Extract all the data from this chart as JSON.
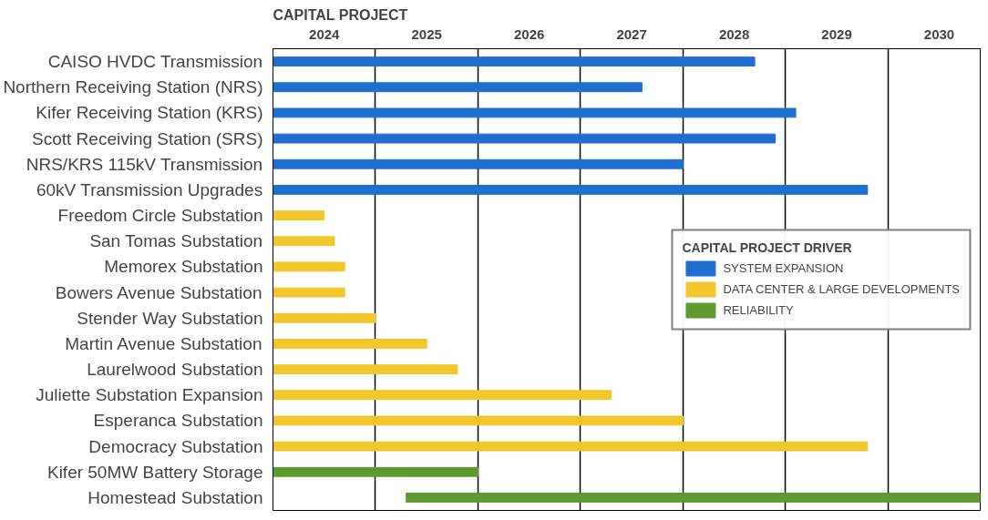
{
  "chart_data": {
    "type": "bar",
    "orientation": "horizontal",
    "ylabel": "CAPITAL PROJECT",
    "legend_title": "CAPITAL PROJECT DRIVER",
    "legend": "right",
    "grid": "x",
    "categories": [
      "CAISO HVDC Transmission",
      "Northern Receiving Station (NRS)",
      "Kifer Receiving Station (KRS)",
      "Scott Receiving Station (SRS)",
      "NRS/KRS 115kV Transmission",
      "60kV Transmission Upgrades",
      "Freedom Circle Substation",
      "San Tomas Substation",
      "Memorex Substation",
      "Bowers Avenue Substation",
      "Stender Way Substation",
      "Martin Avenue Substation",
      "Laurelwood Substation",
      "Juliette Substation Expansion",
      "Esperanca Substation",
      "Democracy Substation",
      "Kifer 50MW Battery Storage",
      "Homestead Substation"
    ],
    "series": [
      {
        "name": "SYSTEM EXPANSION",
        "color": "#1f6fd1",
        "base": [
          2023.5,
          2023.5,
          2023.5,
          2023.5,
          2023.5,
          2023.5,
          null,
          null,
          null,
          null,
          null,
          null,
          null,
          null,
          null,
          null,
          null,
          null
        ],
        "values": [
          4.7,
          3.6,
          5.1,
          4.9,
          4.0,
          5.8,
          null,
          null,
          null,
          null,
          null,
          null,
          null,
          null,
          null,
          null,
          null,
          null
        ]
      },
      {
        "name": "DATA CENTER & LARGE DEVELOPMENTS",
        "color": "#f2c72c",
        "base": [
          null,
          null,
          null,
          null,
          null,
          null,
          2023.5,
          2023.5,
          2023.5,
          2023.5,
          2023.5,
          2023.5,
          2023.5,
          2023.5,
          2023.5,
          2023.5,
          null,
          null
        ],
        "values": [
          null,
          null,
          null,
          null,
          null,
          null,
          0.5,
          0.6,
          0.7,
          0.7,
          1.0,
          1.5,
          1.8,
          3.3,
          4.0,
          5.8,
          null,
          null
        ]
      },
      {
        "name": "RELIABILITY",
        "color": "#5f9a2e",
        "base": [
          null,
          null,
          null,
          null,
          null,
          null,
          null,
          null,
          null,
          null,
          null,
          null,
          null,
          null,
          null,
          null,
          2023.5,
          2024.8
        ],
        "values": [
          null,
          null,
          null,
          null,
          null,
          null,
          null,
          null,
          null,
          null,
          null,
          null,
          null,
          null,
          null,
          null,
          2.0,
          5.6
        ]
      }
    ],
    "xlim": [
      2023.5,
      2030.4
    ],
    "xticks": [
      {
        "value": 2023.5,
        "label": null
      },
      2024,
      {
        "value": 2024.5,
        "label": null
      },
      2025,
      {
        "value": 2025.5,
        "label": null
      },
      2026,
      {
        "value": 2026.5,
        "label": null
      },
      2027,
      {
        "value": 2027.5,
        "label": null
      },
      2028,
      {
        "value": 2028.5,
        "label": null
      },
      2029,
      {
        "value": 2029.5,
        "label": null
      },
      2030
    ]
  }
}
